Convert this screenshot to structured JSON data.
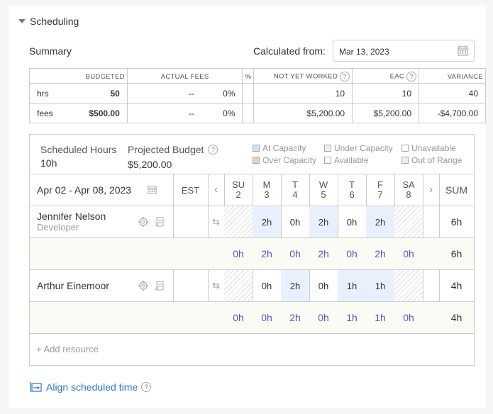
{
  "section": {
    "title": "Scheduling"
  },
  "summary": {
    "label": "Summary",
    "calculated_from_label": "Calculated from:",
    "calculated_from_value": "Mar 13, 2023"
  },
  "summary_table": {
    "headers": [
      "BUDGETED",
      "ACTUAL FEES",
      "%",
      "NOT YET WORKED",
      "EAC",
      "VARIANCE"
    ],
    "rows": [
      {
        "label": "hrs",
        "cells": [
          "50",
          "--",
          "0%",
          "10",
          "10",
          "40"
        ]
      },
      {
        "label": "fees",
        "cells": [
          "$500.00",
          "--",
          "0%",
          "$5,200.00",
          "$5,200.00",
          "-$4,700.00"
        ]
      }
    ]
  },
  "scheduling": {
    "scheduled_hours_label": "Scheduled Hours",
    "scheduled_hours_value": "10h",
    "projected_budget_label": "Projected Budget",
    "projected_budget_value": "$5,200.00",
    "legend": [
      {
        "label": "At Capacity",
        "color": "#cfe0f7"
      },
      {
        "label": "Under Capacity",
        "color": "#e8f0fe"
      },
      {
        "label": "Unavailable",
        "color": "#ffffff"
      },
      {
        "label": "Over Capacity",
        "color": "#f5c9c6"
      },
      {
        "label": "Available",
        "color": "#ffffff"
      },
      {
        "label": "Out of Range",
        "color": "#efefea"
      }
    ],
    "date_range": "Apr 02 - Apr 08, 2023",
    "timezone": "EST",
    "days": [
      {
        "dow": "SU",
        "num": "2"
      },
      {
        "dow": "M",
        "num": "3"
      },
      {
        "dow": "T",
        "num": "4"
      },
      {
        "dow": "W",
        "num": "5"
      },
      {
        "dow": "T",
        "num": "6"
      },
      {
        "dow": "F",
        "num": "7"
      },
      {
        "dow": "SA",
        "num": "8"
      }
    ],
    "sum_label": "SUM",
    "resources": [
      {
        "name": "Jennifer Nelson",
        "role": "Developer",
        "hours": [
          "",
          "2h",
          "0h",
          "2h",
          "0h",
          "2h",
          ""
        ],
        "sum": "6h",
        "totals": [
          "0h",
          "2h",
          "0h",
          "2h",
          "0h",
          "2h",
          "0h"
        ],
        "totals_sum": "6h"
      },
      {
        "name": "Arthur Einemoor",
        "role": "",
        "hours": [
          "",
          "0h",
          "2h",
          "0h",
          "1h",
          "1h",
          ""
        ],
        "sum": "4h",
        "totals": [
          "0h",
          "0h",
          "2h",
          "0h",
          "1h",
          "1h",
          "0h"
        ],
        "totals_sum": "4h"
      }
    ],
    "add_resource": "+ Add resource"
  },
  "align": {
    "label": "Align scheduled time"
  }
}
